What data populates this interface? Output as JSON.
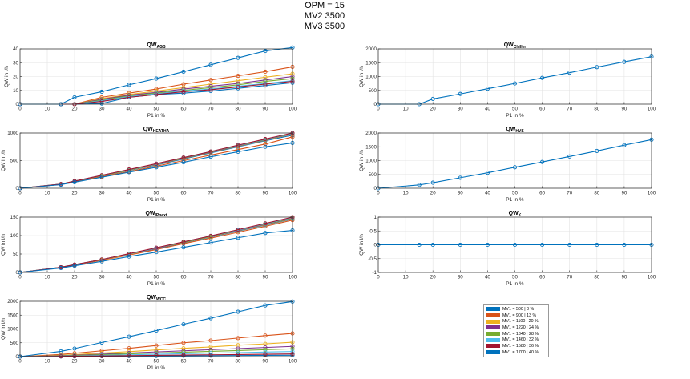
{
  "header": {
    "lines": [
      "OPM = 15",
      "MV2 3500",
      "MV3 3500"
    ]
  },
  "legend": {
    "entries": [
      {
        "label": "MV1 = 500 | 0 %",
        "color": "#0072BD"
      },
      {
        "label": "MV1 = 900 | 13 %",
        "color": "#D95319"
      },
      {
        "label": "MV1 = 1100 | 20 %",
        "color": "#EDB120"
      },
      {
        "label": "MV1 = 1220 | 24 %",
        "color": "#7E2F8E"
      },
      {
        "label": "MV1 = 1340 | 28 %",
        "color": "#77AC30"
      },
      {
        "label": "MV1 = 1460 | 32 %",
        "color": "#4DBEEE"
      },
      {
        "label": "MV1 = 1580 | 36 %",
        "color": "#A2142F"
      },
      {
        "label": "MV1 = 1700 | 40 %",
        "color": "#0072BD"
      }
    ]
  },
  "chart_data": [
    {
      "type": "line",
      "id": "agb",
      "title": "QW",
      "title_sub": "AGB",
      "xlabel": "P1 in %",
      "ylabel": "QW in l/h",
      "xlim": [
        0,
        100
      ],
      "ylim": [
        0,
        40
      ],
      "xticks": [
        0,
        10,
        20,
        30,
        40,
        50,
        60,
        70,
        80,
        90,
        100
      ],
      "yticks": [
        0,
        10,
        20,
        30,
        40
      ],
      "grid": true,
      "series": [
        {
          "x": [
            0,
            15,
            20,
            30,
            40,
            50,
            60,
            70,
            80,
            90,
            100
          ],
          "y": [
            0,
            0,
            0,
            0.5,
            5,
            7,
            8,
            9.5,
            11.5,
            13.5,
            15.5
          ]
        },
        {
          "x": [
            0,
            15,
            20,
            30,
            40,
            50,
            60,
            70,
            80,
            90,
            100
          ],
          "y": [
            0,
            0,
            0,
            5,
            8,
            11,
            14.5,
            17.5,
            20.5,
            23.5,
            27
          ]
        },
        {
          "x": [
            0,
            15,
            20,
            30,
            40,
            50,
            60,
            70,
            80,
            90,
            100
          ],
          "y": [
            0,
            0,
            0,
            4,
            7,
            9.5,
            12,
            14.5,
            17,
            19.5,
            22
          ]
        },
        {
          "x": [
            0,
            15,
            20,
            30,
            40,
            50,
            60,
            70,
            80,
            90,
            100
          ],
          "y": [
            0,
            0,
            0,
            3.5,
            6.5,
            8.5,
            11,
            13,
            15,
            17.5,
            20
          ]
        },
        {
          "x": [
            0,
            15,
            20,
            30,
            40,
            50,
            60,
            70,
            80,
            90,
            100
          ],
          "y": [
            0,
            0,
            0,
            3,
            6,
            8,
            10,
            12,
            14,
            16.5,
            18.5
          ]
        },
        {
          "x": [
            0,
            15,
            20,
            30,
            40,
            50,
            60,
            70,
            80,
            90,
            100
          ],
          "y": [
            0,
            0,
            0,
            2.5,
            5.5,
            7.5,
            9.5,
            11,
            13,
            15,
            17
          ]
        },
        {
          "x": [
            0,
            15,
            20,
            30,
            40,
            50,
            60,
            70,
            80,
            90,
            100
          ],
          "y": [
            0,
            0,
            0,
            2,
            5,
            7,
            9,
            10.5,
            12.5,
            14.5,
            16.5
          ]
        },
        {
          "x": [
            0,
            15,
            20,
            30,
            40,
            50,
            60,
            70,
            80,
            90,
            100
          ],
          "y": [
            0,
            0,
            5,
            9,
            14,
            18.5,
            23.5,
            28.5,
            33.5,
            38.5,
            41
          ]
        }
      ]
    },
    {
      "type": "line",
      "id": "chiller",
      "title": "QW",
      "title_sub": "Chiller",
      "xlabel": "P1 in %",
      "ylabel": "QW in l/h",
      "xlim": [
        0,
        100
      ],
      "ylim": [
        0,
        2000
      ],
      "xticks": [
        0,
        10,
        20,
        30,
        40,
        50,
        60,
        70,
        80,
        90,
        100
      ],
      "yticks": [
        0,
        500,
        1000,
        1500,
        2000
      ],
      "grid": true,
      "series": [
        {
          "x": [
            0,
            15,
            20,
            30,
            40,
            50,
            60,
            70,
            80,
            90,
            100
          ],
          "y": [
            0,
            0,
            190,
            370,
            560,
            750,
            950,
            1140,
            1340,
            1530,
            1720
          ]
        }
      ]
    },
    {
      "type": "line",
      "id": "heatha",
      "title": "QW",
      "title_sub": "HEATHA",
      "xlabel": "P1 in %",
      "ylabel": "QW in l/h",
      "xlim": [
        0,
        100
      ],
      "ylim": [
        0,
        1000
      ],
      "xticks": [
        0,
        10,
        20,
        30,
        40,
        50,
        60,
        70,
        80,
        90,
        100
      ],
      "yticks": [
        0,
        500,
        1000
      ],
      "grid": true,
      "series": [
        {
          "x": [
            0,
            15,
            20,
            30,
            40,
            50,
            60,
            70,
            80,
            90,
            100
          ],
          "y": [
            0,
            70,
            120,
            220,
            320,
            420,
            530,
            640,
            750,
            860,
            960
          ]
        },
        {
          "x": [
            0,
            15,
            20,
            30,
            40,
            50,
            60,
            70,
            80,
            90,
            100
          ],
          "y": [
            0,
            70,
            120,
            210,
            300,
            400,
            500,
            600,
            700,
            800,
            930
          ]
        },
        {
          "x": [
            0,
            15,
            20,
            30,
            40,
            50,
            60,
            70,
            80,
            90,
            100
          ],
          "y": [
            0,
            75,
            125,
            225,
            325,
            430,
            540,
            650,
            760,
            870,
            980
          ]
        },
        {
          "x": [
            0,
            15,
            20,
            30,
            40,
            50,
            60,
            70,
            80,
            90,
            100
          ],
          "y": [
            0,
            75,
            125,
            230,
            330,
            435,
            545,
            655,
            765,
            875,
            985
          ]
        },
        {
          "x": [
            0,
            15,
            20,
            30,
            40,
            50,
            60,
            70,
            80,
            90,
            100
          ],
          "y": [
            0,
            75,
            130,
            230,
            330,
            440,
            550,
            660,
            770,
            880,
            990
          ]
        },
        {
          "x": [
            0,
            15,
            20,
            30,
            40,
            50,
            60,
            70,
            80,
            90,
            100
          ],
          "y": [
            0,
            75,
            130,
            235,
            335,
            440,
            555,
            665,
            775,
            885,
            995
          ]
        },
        {
          "x": [
            0,
            15,
            20,
            30,
            40,
            50,
            60,
            70,
            80,
            90,
            100
          ],
          "y": [
            0,
            75,
            130,
            235,
            340,
            445,
            555,
            665,
            780,
            890,
            1000
          ]
        },
        {
          "x": [
            0,
            15,
            20,
            30,
            40,
            50,
            60,
            70,
            80,
            90,
            100
          ],
          "y": [
            0,
            65,
            110,
            200,
            290,
            380,
            470,
            570,
            660,
            750,
            820
          ]
        }
      ]
    },
    {
      "type": "line",
      "id": "hvs",
      "title": "QW",
      "title_sub": "HVS",
      "xlabel": "P1 in %",
      "ylabel": "QW in l/h",
      "xlim": [
        0,
        100
      ],
      "ylim": [
        0,
        2000
      ],
      "xticks": [
        0,
        10,
        20,
        30,
        40,
        50,
        60,
        70,
        80,
        90,
        100
      ],
      "yticks": [
        0,
        500,
        1000,
        1500,
        2000
      ],
      "grid": true,
      "series": [
        {
          "x": [
            0,
            15,
            20,
            30,
            40,
            50,
            60,
            70,
            80,
            90,
            100
          ],
          "y": [
            0,
            120,
            200,
            380,
            560,
            760,
            950,
            1150,
            1350,
            1560,
            1760
          ]
        }
      ]
    },
    {
      "type": "line",
      "id": "ipnext",
      "title": "QW",
      "title_sub": "IPnext",
      "xlabel": "P1 in %",
      "ylabel": "QW in l/h",
      "xlim": [
        0,
        100
      ],
      "ylim": [
        0,
        150
      ],
      "xticks": [
        0,
        10,
        20,
        30,
        40,
        50,
        60,
        70,
        80,
        90,
        100
      ],
      "yticks": [
        0,
        50,
        100,
        150
      ],
      "grid": true,
      "series": [
        {
          "x": [
            0,
            15,
            20,
            30,
            40,
            50,
            60,
            70,
            80,
            90,
            100
          ],
          "y": [
            0,
            14,
            20,
            34,
            49,
            64,
            80,
            96,
            112,
            128,
            145
          ]
        },
        {
          "x": [
            0,
            15,
            20,
            30,
            40,
            50,
            60,
            70,
            80,
            90,
            100
          ],
          "y": [
            0,
            14,
            20,
            33,
            47,
            62,
            78,
            93,
            109,
            125,
            142
          ]
        },
        {
          "x": [
            0,
            15,
            20,
            30,
            40,
            50,
            60,
            70,
            80,
            90,
            100
          ],
          "y": [
            0,
            14,
            21,
            34,
            49,
            65,
            81,
            97,
            113,
            129,
            146
          ]
        },
        {
          "x": [
            0,
            15,
            20,
            30,
            40,
            50,
            60,
            70,
            80,
            90,
            100
          ],
          "y": [
            0,
            14,
            21,
            35,
            50,
            65,
            82,
            98,
            114,
            130,
            147
          ]
        },
        {
          "x": [
            0,
            15,
            20,
            30,
            40,
            50,
            60,
            70,
            80,
            90,
            100
          ],
          "y": [
            0,
            14,
            21,
            35,
            50,
            66,
            82,
            98,
            115,
            131,
            148
          ]
        },
        {
          "x": [
            0,
            15,
            20,
            30,
            40,
            50,
            60,
            70,
            80,
            90,
            100
          ],
          "y": [
            0,
            14,
            21,
            35,
            50,
            66,
            83,
            99,
            115,
            132,
            149
          ]
        },
        {
          "x": [
            0,
            15,
            20,
            30,
            40,
            50,
            60,
            70,
            80,
            90,
            100
          ],
          "y": [
            0,
            14,
            21,
            35,
            51,
            67,
            83,
            99,
            116,
            133,
            150
          ]
        },
        {
          "x": [
            0,
            15,
            20,
            30,
            40,
            50,
            60,
            70,
            80,
            90,
            100
          ],
          "y": [
            0,
            12,
            18,
            30,
            43,
            55,
            68,
            81,
            94,
            107,
            114
          ]
        }
      ]
    },
    {
      "type": "line",
      "id": "k",
      "title": "QW",
      "title_sub": "K",
      "xlabel": "P1 in %",
      "ylabel": "QW in l/h",
      "xlim": [
        0,
        100
      ],
      "ylim": [
        -1,
        1
      ],
      "xticks": [
        0,
        10,
        20,
        30,
        40,
        50,
        60,
        70,
        80,
        90,
        100
      ],
      "yticks": [
        -1,
        -0.5,
        0,
        0.5,
        1
      ],
      "grid": true,
      "series": [
        {
          "x": [
            0,
            15,
            20,
            30,
            40,
            50,
            60,
            70,
            80,
            90,
            100
          ],
          "y": [
            0,
            0,
            0,
            0,
            0,
            0,
            0,
            0,
            0,
            0,
            0
          ]
        }
      ]
    },
    {
      "type": "line",
      "id": "wcc",
      "title": "QW",
      "title_sub": "WCC",
      "xlabel": "P1 in %",
      "ylabel": "QW in l/h",
      "xlim": [
        0,
        100
      ],
      "ylim": [
        0,
        2000
      ],
      "xticks": [
        0,
        10,
        20,
        30,
        40,
        50,
        60,
        70,
        80,
        90,
        100
      ],
      "yticks": [
        0,
        500,
        1000,
        1500,
        2000
      ],
      "grid": true,
      "series": [
        {
          "x": [
            0,
            15,
            20,
            30,
            40,
            50,
            60,
            70,
            80,
            90,
            100
          ],
          "y": [
            0,
            5,
            10,
            15,
            20,
            25,
            30,
            35,
            40,
            45,
            50
          ]
        },
        {
          "x": [
            0,
            15,
            20,
            30,
            40,
            50,
            60,
            70,
            80,
            90,
            100
          ],
          "y": [
            0,
            80,
            120,
            210,
            300,
            400,
            500,
            580,
            670,
            760,
            840
          ]
        },
        {
          "x": [
            0,
            15,
            20,
            30,
            40,
            50,
            60,
            70,
            80,
            90,
            100
          ],
          "y": [
            0,
            50,
            70,
            130,
            180,
            240,
            300,
            350,
            410,
            460,
            520
          ]
        },
        {
          "x": [
            0,
            15,
            20,
            30,
            40,
            50,
            60,
            70,
            80,
            90,
            100
          ],
          "y": [
            0,
            35,
            50,
            90,
            130,
            170,
            210,
            250,
            290,
            330,
            370
          ]
        },
        {
          "x": [
            0,
            15,
            20,
            30,
            40,
            50,
            60,
            70,
            80,
            90,
            100
          ],
          "y": [
            0,
            25,
            40,
            70,
            100,
            130,
            160,
            190,
            220,
            250,
            280
          ]
        },
        {
          "x": [
            0,
            15,
            20,
            30,
            40,
            50,
            60,
            70,
            80,
            90,
            100
          ],
          "y": [
            0,
            15,
            25,
            45,
            65,
            85,
            105,
            125,
            145,
            165,
            185
          ]
        },
        {
          "x": [
            0,
            15,
            20,
            30,
            40,
            50,
            60,
            70,
            80,
            90,
            100
          ],
          "y": [
            0,
            10,
            15,
            25,
            35,
            45,
            55,
            65,
            75,
            85,
            95
          ]
        },
        {
          "x": [
            0,
            15,
            20,
            30,
            40,
            50,
            60,
            70,
            80,
            90,
            100
          ],
          "y": [
            0,
            190,
            290,
            510,
            720,
            940,
            1170,
            1390,
            1620,
            1850,
            1990
          ]
        }
      ]
    }
  ]
}
